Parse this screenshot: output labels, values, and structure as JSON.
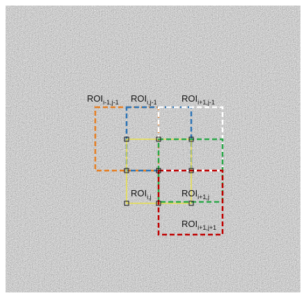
{
  "rois": [
    {
      "main": "ROI",
      "sub": "i-1,j-1"
    },
    {
      "main": "ROI",
      "sub": "i,j-1"
    },
    {
      "main": "ROI",
      "sub": "i+1,j-1"
    },
    {
      "main": "ROI",
      "sub": "i,j"
    },
    {
      "main": "ROI",
      "sub": "i+1,j"
    },
    {
      "main": "ROI",
      "sub": "i+1,j+1"
    }
  ]
}
